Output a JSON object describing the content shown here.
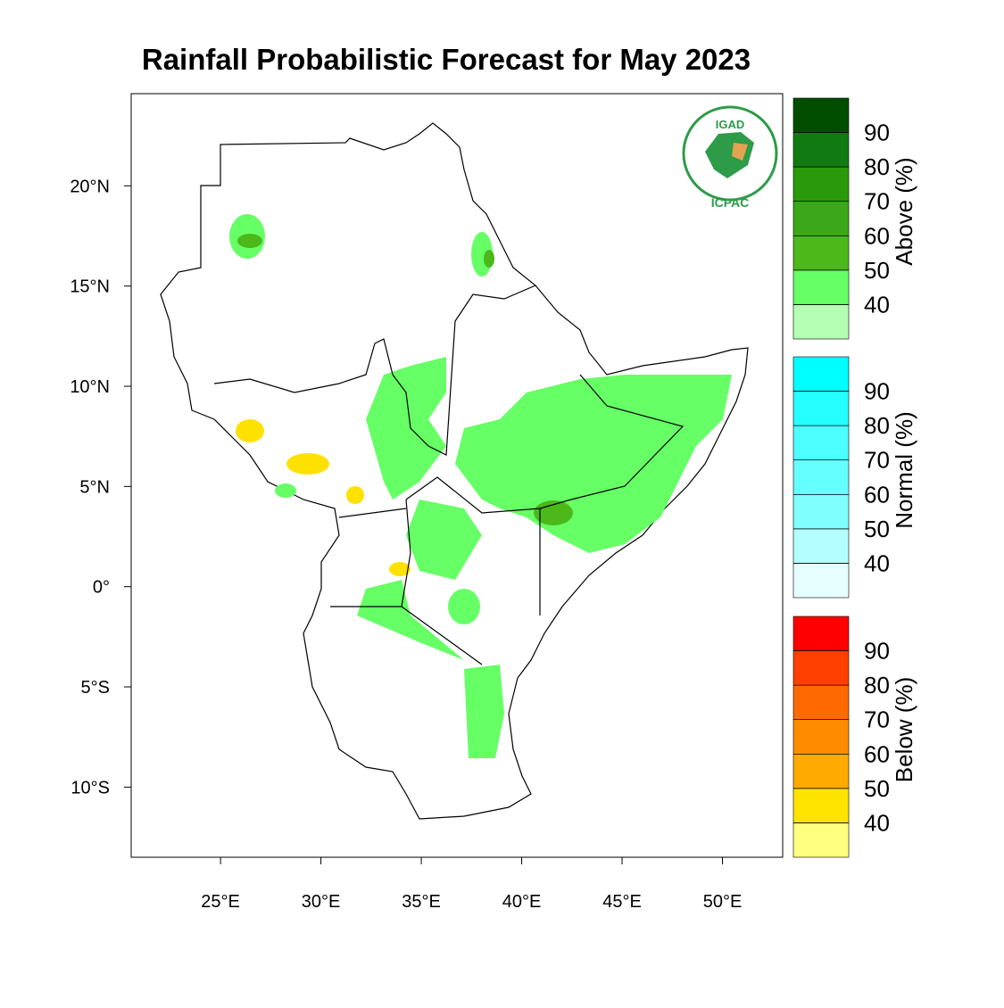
{
  "title": "Rainfall Probabilistic Forecast for May 2023",
  "logo": {
    "top": "IGAD",
    "bottom": "ICPAC"
  },
  "map": {
    "lonlim": [
      20.55,
      53.0
    ],
    "latlim": [
      -13.5,
      24.6
    ],
    "lonticks": [
      {
        "value": 25,
        "label": "25°E"
      },
      {
        "value": 30,
        "label": "30°E"
      },
      {
        "value": 35,
        "label": "35°E"
      },
      {
        "value": 40,
        "label": "40°E"
      },
      {
        "value": 45,
        "label": "45°E"
      },
      {
        "value": 50,
        "label": "50°E"
      }
    ],
    "latticks": [
      {
        "value": 20,
        "label": "20°N"
      },
      {
        "value": 15,
        "label": "15°N"
      },
      {
        "value": 10,
        "label": "10°N"
      },
      {
        "value": 5,
        "label": "5°N"
      },
      {
        "value": 0,
        "label": "0°"
      },
      {
        "value": -5,
        "label": "5°S"
      },
      {
        "value": -10,
        "label": "10°S"
      }
    ]
  },
  "colorbars": [
    {
      "label": "Above (%)",
      "lim": [
        30,
        100
      ],
      "ticks": [
        40,
        50,
        60,
        70,
        80,
        90
      ],
      "colors": [
        "#b4ffb4",
        "#66ff66",
        "#4cb81a",
        "#3aa818",
        "#2a9a0a",
        "#127a12",
        "#004d00"
      ]
    },
    {
      "label": "Normal (%)",
      "lim": [
        30,
        100
      ],
      "ticks": [
        40,
        50,
        60,
        70,
        80,
        90
      ],
      "colors": [
        "#e6ffff",
        "#b3ffff",
        "#80ffff",
        "#66ffff",
        "#4dffff",
        "#26ffff",
        "#00ffff"
      ]
    },
    {
      "label": "Below (%)",
      "lim": [
        30,
        100
      ],
      "ticks": [
        40,
        50,
        60,
        70,
        80,
        90
      ],
      "colors": [
        "#ffff80",
        "#ffe400",
        "#ffaa00",
        "#ff8c00",
        "#ff6a00",
        "#ff4000",
        "#ff0000"
      ]
    }
  ]
}
